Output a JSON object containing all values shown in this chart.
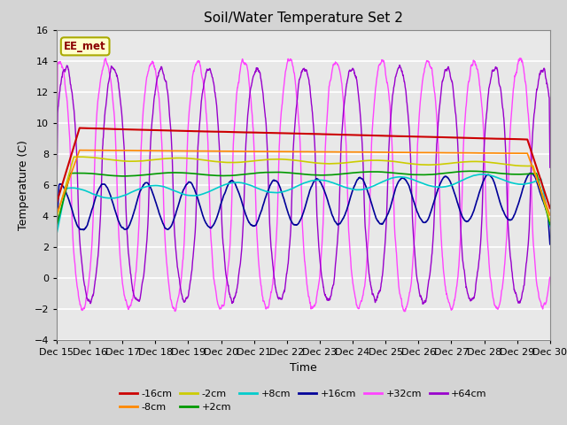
{
  "title": "Soil/Water Temperature Set 2",
  "xlabel": "Time",
  "ylabel": "Temperature (C)",
  "ylim": [
    -4,
    16
  ],
  "xlim": [
    0,
    15
  ],
  "x_tick_labels": [
    "Dec 15",
    "Dec 16",
    "Dec 17",
    "Dec 18",
    "Dec 19",
    "Dec 20",
    "Dec 21",
    "Dec 22",
    "Dec 23",
    "Dec 24",
    "Dec 25",
    "Dec 26",
    "Dec 27",
    "Dec 28",
    "Dec 29",
    "Dec 30"
  ],
  "fig_facecolor": "#d4d4d4",
  "ax_facecolor": "#e8e8e8",
  "annotation_text": "EE_met",
  "annotation_color": "#8b0000",
  "annotation_bg": "#ffffcc",
  "annotation_border": "#aaaa00",
  "series": [
    {
      "label": "-16cm",
      "color": "#cc0000"
    },
    {
      "label": "-8cm",
      "color": "#ff8800"
    },
    {
      "label": "-2cm",
      "color": "#cccc00"
    },
    {
      "label": "+2cm",
      "color": "#009900"
    },
    {
      "label": "+8cm",
      "color": "#00cccc"
    },
    {
      "label": "+16cm",
      "color": "#000099"
    },
    {
      "label": "+32cm",
      "color": "#ff44ff"
    },
    {
      "label": "+64cm",
      "color": "#9900cc"
    }
  ]
}
